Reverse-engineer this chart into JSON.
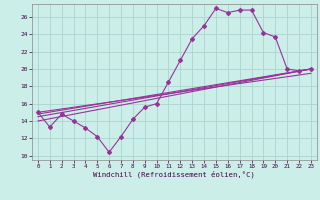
{
  "xlabel": "Windchill (Refroidissement éolien,°C)",
  "bg_color": "#cceee8",
  "grid_color": "#aad4ce",
  "line_color": "#993399",
  "xlim": [
    -0.5,
    23.5
  ],
  "ylim": [
    9.5,
    27.5
  ],
  "yticks": [
    10,
    12,
    14,
    16,
    18,
    20,
    22,
    24,
    26
  ],
  "xticks": [
    0,
    1,
    2,
    3,
    4,
    5,
    6,
    7,
    8,
    9,
    10,
    11,
    12,
    13,
    14,
    15,
    16,
    17,
    18,
    19,
    20,
    21,
    22,
    23
  ],
  "series1_x": [
    0,
    1,
    2,
    3,
    4,
    5,
    6,
    7,
    8,
    9,
    10,
    11,
    12,
    13,
    14,
    15,
    16,
    17,
    18,
    19,
    20,
    21,
    22,
    23
  ],
  "series1_y": [
    15.0,
    13.3,
    14.8,
    14.0,
    13.2,
    12.2,
    10.4,
    12.2,
    14.2,
    15.6,
    16.0,
    18.5,
    21.0,
    23.5,
    25.0,
    27.0,
    26.5,
    26.8,
    26.8,
    24.2,
    23.7,
    20.0,
    19.8,
    20.0
  ],
  "line2_x": [
    0,
    23
  ],
  "line2_y": [
    14.0,
    20.0
  ],
  "line3_x": [
    0,
    23
  ],
  "line3_y": [
    14.5,
    20.0
  ],
  "line4_x": [
    0,
    23
  ],
  "line4_y": [
    14.8,
    20.0
  ],
  "line5_x": [
    0,
    23
  ],
  "line5_y": [
    15.0,
    19.5
  ]
}
